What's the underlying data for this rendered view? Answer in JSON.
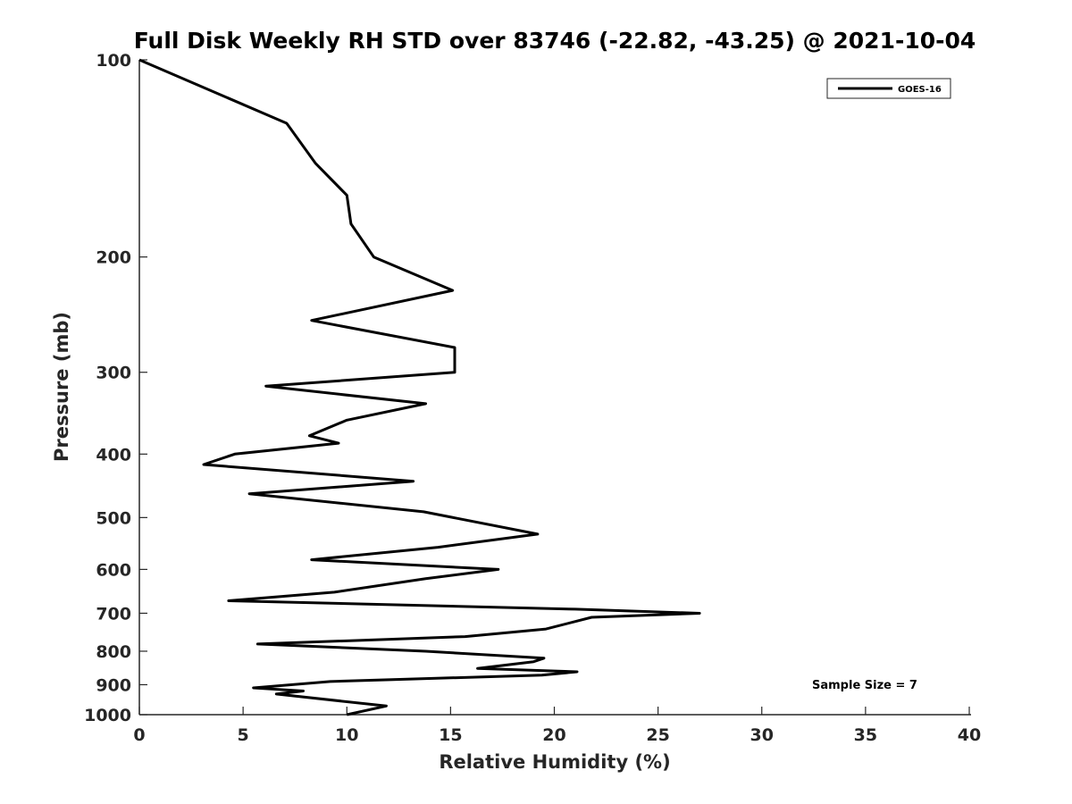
{
  "chart_data": {
    "type": "line",
    "title": "Full Disk Weekly RH STD over 83746 (-22.82, -43.25) @ 2021-10-04",
    "xlabel": "Relative Humidity (%)",
    "ylabel": "Pressure (mb)",
    "xlim": [
      0,
      40
    ],
    "ylim": [
      100,
      1000
    ],
    "yscale": "log",
    "y_reversed": true,
    "xticks": [
      "0",
      "5",
      "10",
      "15",
      "20",
      "25",
      "30",
      "35",
      "40"
    ],
    "yticks": [
      "100",
      "200",
      "300",
      "400",
      "500",
      "600",
      "700",
      "800",
      "900",
      "1000"
    ],
    "grid": false,
    "legend_position": "top-right",
    "annotation": "Sample Size = 7",
    "series": [
      {
        "name": "GOES-16",
        "color": "#000000",
        "x": [
          0.0,
          7.1,
          8.5,
          10.0,
          10.2,
          11.3,
          15.1,
          8.3,
          15.2,
          15.2,
          6.1,
          13.8,
          10.0,
          8.2,
          9.6,
          4.6,
          3.1,
          13.2,
          5.3,
          13.7,
          19.2,
          14.4,
          8.3,
          17.3,
          13.8,
          9.4,
          4.3,
          21.0,
          27.0,
          21.8,
          19.6,
          15.7,
          5.7,
          13.8,
          19.5,
          19.0,
          16.3,
          21.1,
          19.4,
          9.2,
          5.5,
          7.9,
          6.6,
          11.9,
          10.0
        ],
        "y": [
          100,
          125,
          144,
          161,
          178,
          200,
          225,
          250,
          275,
          300,
          315,
          335,
          355,
          375,
          385,
          400,
          415,
          440,
          460,
          490,
          530,
          555,
          580,
          600,
          620,
          650,
          670,
          690,
          700,
          710,
          740,
          760,
          780,
          800,
          820,
          830,
          850,
          860,
          870,
          890,
          910,
          920,
          930,
          970,
          1000
        ]
      }
    ]
  }
}
